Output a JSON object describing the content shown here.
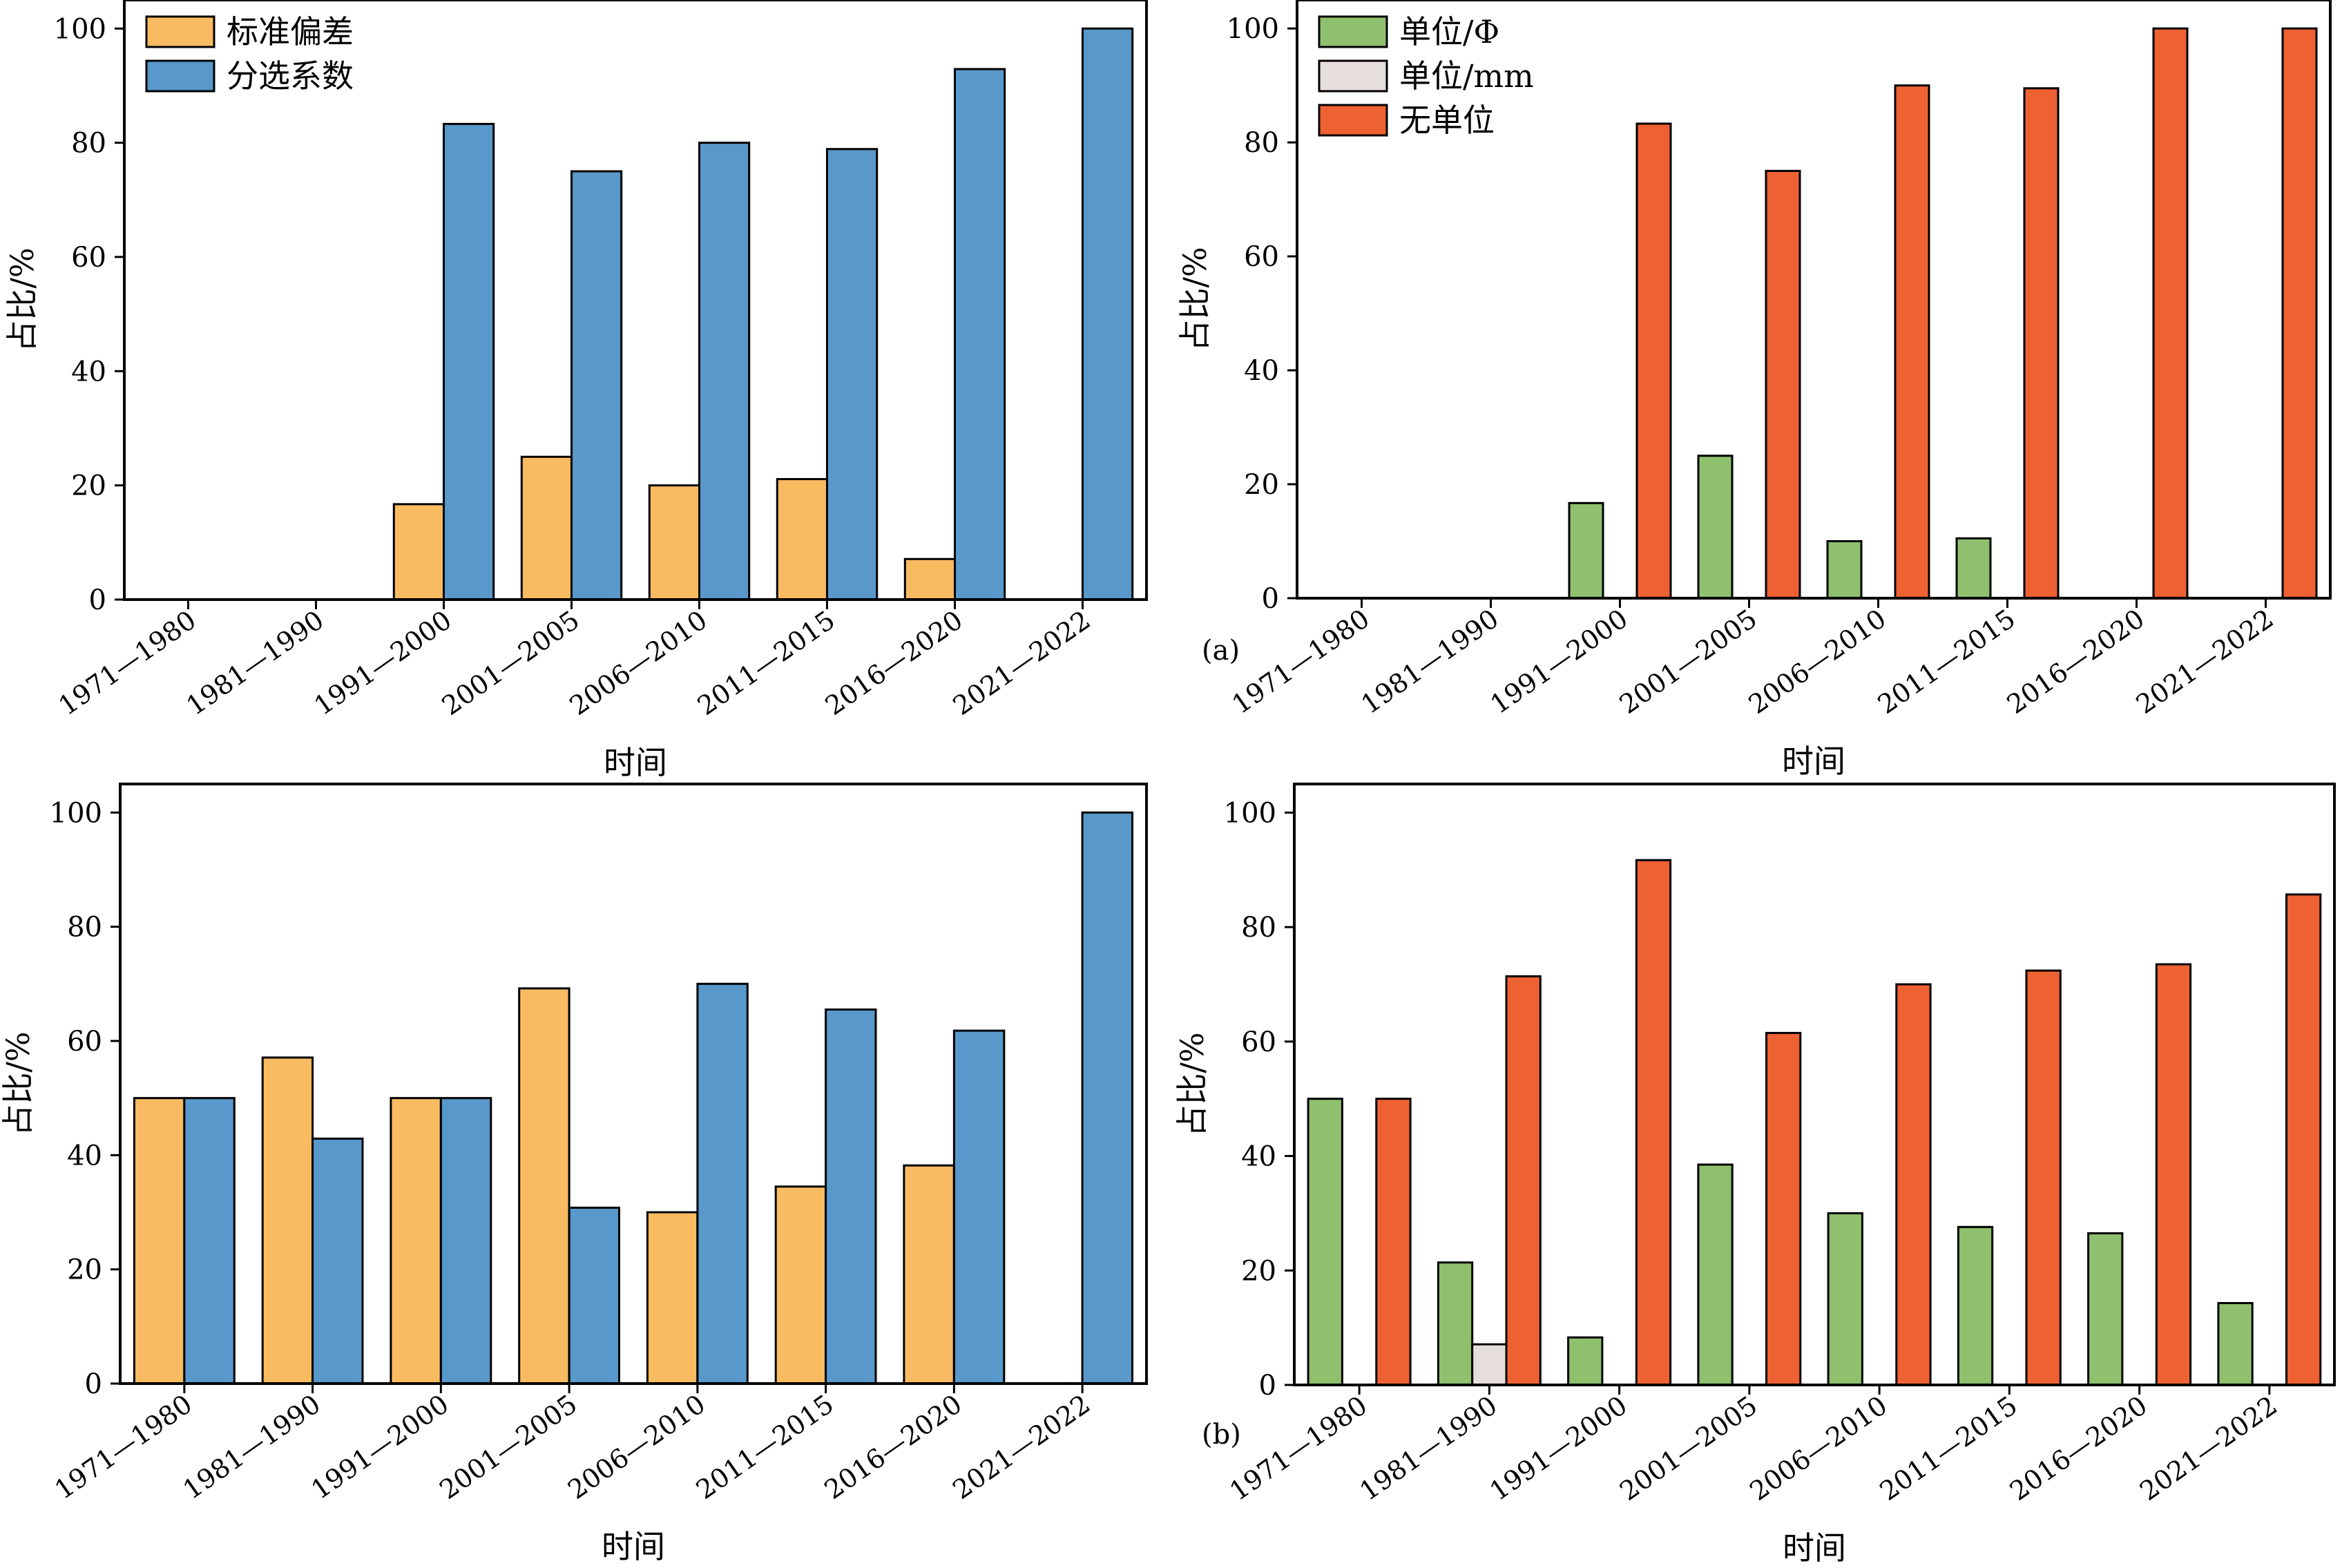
{
  "figure": {
    "panel_labels": [
      "(a)",
      "(b)"
    ]
  },
  "chart_data": [
    {
      "type": "bar",
      "categories": [
        "1971—1980",
        "1981—1990",
        "1991—2000",
        "2001—2005",
        "2006—2010",
        "2011—2015",
        "2016—2020",
        "2021—2022"
      ],
      "series": [
        {
          "name": "标准偏差",
          "color": "#F8BB62",
          "values": [
            0,
            0,
            16.7,
            25.0,
            20.0,
            21.1,
            7.1,
            0
          ]
        },
        {
          "name": "分选系数",
          "color": "#5898CA",
          "values": [
            0,
            0,
            83.3,
            75.0,
            80.0,
            78.9,
            92.9,
            100
          ]
        }
      ],
      "xlabel": "时间",
      "ylabel": "占比/%",
      "ylim": [
        0,
        105
      ],
      "yticks": [
        0,
        20,
        40,
        60,
        80,
        100
      ],
      "legend": "top-left",
      "grid": false
    },
    {
      "type": "bar",
      "categories": [
        "1971—1980",
        "1981—1990",
        "1991—2000",
        "2001—2005",
        "2006—2010",
        "2011—2015",
        "2016—2020",
        "2021—2022"
      ],
      "series": [
        {
          "name": "单位/Φ",
          "color": "#8EC06E",
          "values": [
            0,
            0,
            16.7,
            25.0,
            10.0,
            10.5,
            0,
            0
          ]
        },
        {
          "name": "单位/mm",
          "color": "#E6DEDA",
          "values": [
            0,
            0,
            0,
            0,
            0,
            0,
            0,
            0
          ]
        },
        {
          "name": "无单位",
          "color": "#EE6133",
          "values": [
            0,
            0,
            83.3,
            75.0,
            90.0,
            89.5,
            100,
            100
          ]
        }
      ],
      "xlabel": "时间",
      "ylabel": "占比/%",
      "ylim": [
        0,
        105
      ],
      "yticks": [
        0,
        20,
        40,
        60,
        80,
        100
      ],
      "legend": "top-left",
      "grid": false
    },
    {
      "type": "bar",
      "categories": [
        "1971—1980",
        "1981—1990",
        "1991—2000",
        "2001—2005",
        "2006—2010",
        "2011—2015",
        "2016—2020",
        "2021—2022"
      ],
      "series": [
        {
          "name": "标准偏差",
          "color": "#F8BB62",
          "values": [
            50.0,
            57.1,
            50.0,
            69.2,
            30.0,
            34.5,
            38.2,
            0
          ]
        },
        {
          "name": "分选系数",
          "color": "#5898CA",
          "values": [
            50.0,
            42.9,
            50.0,
            30.8,
            70.0,
            65.5,
            61.8,
            100
          ]
        }
      ],
      "xlabel": "时间",
      "ylabel": "占比/%",
      "ylim": [
        0,
        105
      ],
      "yticks": [
        0,
        20,
        40,
        60,
        80,
        100
      ],
      "grid": false
    },
    {
      "type": "bar",
      "categories": [
        "1971—1980",
        "1981—1990",
        "1991—2000",
        "2001—2005",
        "2006—2010",
        "2011—2015",
        "2016—2020",
        "2021—2022"
      ],
      "series": [
        {
          "name": "单位/Φ",
          "color": "#8EC06E",
          "values": [
            50.0,
            21.4,
            8.3,
            38.5,
            30.0,
            27.6,
            26.5,
            14.3
          ]
        },
        {
          "name": "单位/mm",
          "color": "#E6DEDA",
          "values": [
            0,
            7.1,
            0,
            0,
            0,
            0,
            0,
            0
          ]
        },
        {
          "name": "无单位",
          "color": "#EE6133",
          "values": [
            50.0,
            71.4,
            91.7,
            61.5,
            70.0,
            72.4,
            73.5,
            85.7
          ]
        }
      ],
      "xlabel": "时间",
      "ylabel": "占比/%",
      "ylim": [
        0,
        105
      ],
      "yticks": [
        0,
        20,
        40,
        60,
        80,
        100
      ],
      "grid": false
    }
  ]
}
